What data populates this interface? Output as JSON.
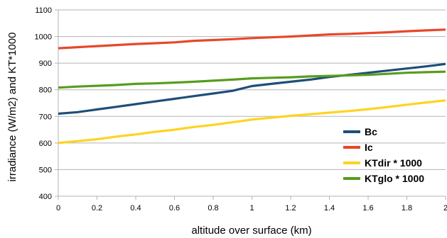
{
  "chart_data": {
    "type": "line",
    "title": "",
    "xlabel": "altitude over surface (km)",
    "ylabel": "irradiance (W/m2) and KT*1000",
    "xlim": [
      0,
      2
    ],
    "ylim": [
      400,
      1100
    ],
    "x_ticks": [
      "0",
      "0.2",
      "0.4",
      "0.6",
      "0.8",
      "1",
      "1.2",
      "1.4",
      "1.6",
      "1.8",
      "2"
    ],
    "y_ticks": [
      "400",
      "500",
      "600",
      "700",
      "800",
      "900",
      "1000",
      "1100"
    ],
    "grid": true,
    "legend_position": "bottom-right",
    "x": [
      0,
      0.1,
      0.2,
      0.3,
      0.4,
      0.5,
      0.6,
      0.7,
      0.8,
      0.9,
      1.0,
      1.1,
      1.2,
      1.3,
      1.4,
      1.5,
      1.6,
      1.7,
      1.8,
      1.9,
      2.0
    ],
    "series": [
      {
        "name": "Bc",
        "color": "#1f4e79",
        "values": [
          710,
          716,
          726,
          736,
          746,
          756,
          766,
          776,
          786,
          796,
          814,
          822,
          830,
          838,
          848,
          856,
          864,
          872,
          880,
          888,
          897
        ]
      },
      {
        "name": "Ic",
        "color": "#e8472a",
        "values": [
          956,
          960,
          964,
          968,
          972,
          975,
          978,
          984,
          987,
          990,
          994,
          997,
          1000,
          1004,
          1008,
          1010,
          1013,
          1016,
          1020,
          1023,
          1026
        ]
      },
      {
        "name": "KTdir * 1000",
        "color": "#ffd320",
        "values": [
          600,
          607,
          614,
          624,
          632,
          642,
          650,
          660,
          668,
          678,
          688,
          695,
          702,
          708,
          714,
          720,
          727,
          735,
          744,
          752,
          760
        ]
      },
      {
        "name": "KTglo * 1000",
        "color": "#579d1c",
        "values": [
          808,
          812,
          815,
          818,
          822,
          824,
          827,
          830,
          834,
          838,
          843,
          845,
          847,
          850,
          852,
          854,
          856,
          860,
          864,
          866,
          868
        ]
      }
    ]
  }
}
